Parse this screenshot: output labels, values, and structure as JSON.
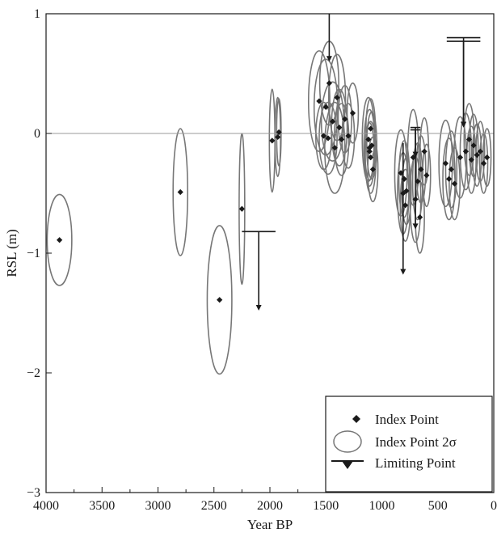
{
  "chart_data": {
    "type": "scatter",
    "xlabel": "Year BP",
    "ylabel": "RSL (m)",
    "xlim": [
      4000,
      0
    ],
    "ylim": [
      -3,
      1
    ],
    "x_ticks": [
      4000,
      3500,
      3000,
      2500,
      2000,
      1500,
      1000,
      500,
      0
    ],
    "y_ticks": [
      -3,
      -2,
      -1,
      0,
      1
    ],
    "grid": false,
    "reference_line_y": 0,
    "legend": {
      "position": "bottom-right",
      "entries": [
        "Index Point",
        "Index Point 2σ",
        "Limiting Point"
      ]
    },
    "colors": {
      "points": "#1a1a1a",
      "ellipses": "#777777",
      "zero_line": "#9a9a9a",
      "limiting": "#1a1a1a"
    },
    "index_points": [
      {
        "x": 3880,
        "y": -0.89,
        "rx": 110,
        "ry": 0.38
      },
      {
        "x": 2800,
        "y": -0.49,
        "rx": 65,
        "ry": 0.53
      },
      {
        "x": 2450,
        "y": -1.39,
        "rx": 110,
        "ry": 0.62
      },
      {
        "x": 2250,
        "y": -0.63,
        "rx": 25,
        "ry": 0.63
      },
      {
        "x": 1980,
        "y": -0.06,
        "rx": 25,
        "ry": 0.43
      },
      {
        "x": 1930,
        "y": -0.03,
        "rx": 25,
        "ry": 0.33
      },
      {
        "x": 1920,
        "y": 0.01,
        "rx": 20,
        "ry": 0.28
      },
      {
        "x": 1560,
        "y": 0.27,
        "rx": 95,
        "ry": 0.42
      },
      {
        "x": 1500,
        "y": 0.22,
        "rx": 105,
        "ry": 0.4
      },
      {
        "x": 1470,
        "y": 0.42,
        "rx": 85,
        "ry": 0.35
      },
      {
        "x": 1440,
        "y": 0.1,
        "rx": 100,
        "ry": 0.33
      },
      {
        "x": 1420,
        "y": -0.12,
        "rx": 90,
        "ry": 0.38
      },
      {
        "x": 1400,
        "y": 0.3,
        "rx": 75,
        "ry": 0.36
      },
      {
        "x": 1380,
        "y": 0.05,
        "rx": 70,
        "ry": 0.32
      },
      {
        "x": 1360,
        "y": -0.05,
        "rx": 65,
        "ry": 0.3
      },
      {
        "x": 1330,
        "y": 0.12,
        "rx": 60,
        "ry": 0.28
      },
      {
        "x": 1300,
        "y": -0.02,
        "rx": 55,
        "ry": 0.27
      },
      {
        "x": 1260,
        "y": 0.17,
        "rx": 50,
        "ry": 0.25
      },
      {
        "x": 1480,
        "y": -0.04,
        "rx": 80,
        "ry": 0.3
      },
      {
        "x": 1520,
        "y": -0.02,
        "rx": 70,
        "ry": 0.28
      },
      {
        "x": 1120,
        "y": -0.05,
        "rx": 55,
        "ry": 0.35
      },
      {
        "x": 1110,
        "y": -0.12,
        "rx": 50,
        "ry": 0.32
      },
      {
        "x": 1100,
        "y": -0.2,
        "rx": 48,
        "ry": 0.3
      },
      {
        "x": 1090,
        "y": -0.1,
        "rx": 45,
        "ry": 0.28
      },
      {
        "x": 1080,
        "y": -0.3,
        "rx": 45,
        "ry": 0.27
      },
      {
        "x": 1100,
        "y": 0.04,
        "rx": 42,
        "ry": 0.25
      },
      {
        "x": 1110,
        "y": -0.15,
        "rx": 40,
        "ry": 0.24
      },
      {
        "x": 830,
        "y": -0.33,
        "rx": 55,
        "ry": 0.36
      },
      {
        "x": 810,
        "y": -0.5,
        "rx": 50,
        "ry": 0.34
      },
      {
        "x": 800,
        "y": -0.38,
        "rx": 48,
        "ry": 0.32
      },
      {
        "x": 790,
        "y": -0.6,
        "rx": 45,
        "ry": 0.3
      },
      {
        "x": 780,
        "y": -0.48,
        "rx": 42,
        "ry": 0.28
      },
      {
        "x": 720,
        "y": -0.2,
        "rx": 50,
        "ry": 0.4
      },
      {
        "x": 700,
        "y": -0.55,
        "rx": 48,
        "ry": 0.36
      },
      {
        "x": 680,
        "y": -0.4,
        "rx": 45,
        "ry": 0.32
      },
      {
        "x": 660,
        "y": -0.7,
        "rx": 40,
        "ry": 0.3
      },
      {
        "x": 650,
        "y": -0.3,
        "rx": 42,
        "ry": 0.28
      },
      {
        "x": 620,
        "y": -0.15,
        "rx": 38,
        "ry": 0.28
      },
      {
        "x": 600,
        "y": -0.35,
        "rx": 35,
        "ry": 0.26
      },
      {
        "x": 430,
        "y": -0.25,
        "rx": 60,
        "ry": 0.36
      },
      {
        "x": 400,
        "y": -0.38,
        "rx": 55,
        "ry": 0.34
      },
      {
        "x": 380,
        "y": -0.3,
        "rx": 50,
        "ry": 0.32
      },
      {
        "x": 350,
        "y": -0.42,
        "rx": 48,
        "ry": 0.3
      },
      {
        "x": 300,
        "y": -0.2,
        "rx": 55,
        "ry": 0.34
      },
      {
        "x": 250,
        "y": -0.15,
        "rx": 50,
        "ry": 0.32
      },
      {
        "x": 220,
        "y": -0.05,
        "rx": 45,
        "ry": 0.3
      },
      {
        "x": 200,
        "y": -0.22,
        "rx": 42,
        "ry": 0.28
      },
      {
        "x": 180,
        "y": -0.1,
        "rx": 40,
        "ry": 0.26
      },
      {
        "x": 150,
        "y": -0.18,
        "rx": 40,
        "ry": 0.26
      },
      {
        "x": 120,
        "y": -0.15,
        "rx": 38,
        "ry": 0.25
      },
      {
        "x": 90,
        "y": -0.25,
        "rx": 36,
        "ry": 0.25
      },
      {
        "x": 60,
        "y": -0.2,
        "rx": 35,
        "ry": 0.24
      }
    ],
    "limiting_points": [
      {
        "x": 2100,
        "y": -0.82,
        "bar_halfwidth": 150,
        "arrow_to": -1.48
      },
      {
        "x": 1470,
        "y": 1.0,
        "bar_halfwidth": 0,
        "arrow_to": 0.6
      },
      {
        "x": 810,
        "y": -0.08,
        "bar_halfwidth": 0,
        "arrow_to": -1.18
      },
      {
        "x": 700,
        "y": 0.05,
        "bar_halfwidth": 45,
        "arrow_to": -0.8
      },
      {
        "x": 700,
        "y": 0.03,
        "bar_halfwidth": 45,
        "arrow_to": -0.2
      },
      {
        "x": 270,
        "y": 0.8,
        "bar_halfwidth": 150,
        "arrow_to": 0.05
      },
      {
        "x": 270,
        "y": 0.77,
        "bar_halfwidth": 150,
        "arrow_to": 0.05
      }
    ]
  }
}
